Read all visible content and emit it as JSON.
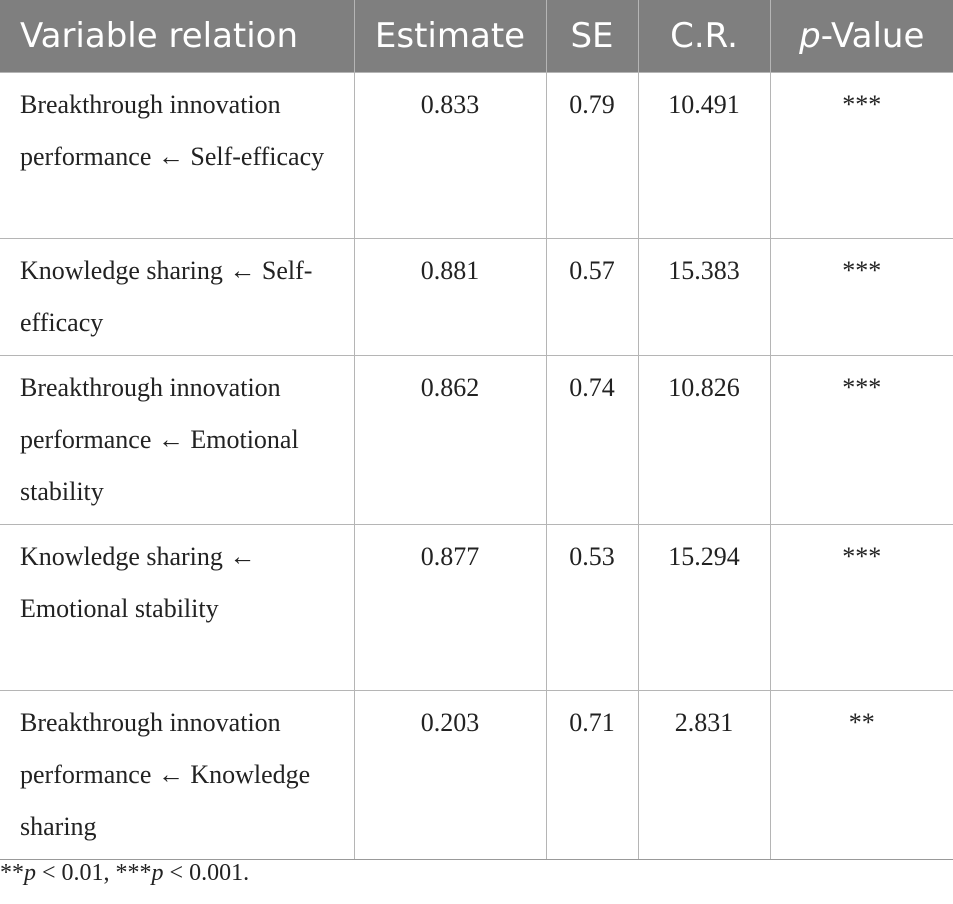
{
  "headers": {
    "variable_relation": "Variable relation",
    "estimate": "Estimate",
    "se": "SE",
    "cr": "C.R.",
    "p_italic": "p",
    "p_rest": "-Value"
  },
  "rows": [
    {
      "relation": "Breakthrough innovation performance ← Self-efficacy",
      "estimate": "0.833",
      "se": "0.79",
      "cr": "10.491",
      "p": "***"
    },
    {
      "relation": "Knowledge sharing ← Self-efficacy",
      "estimate": "0.881",
      "se": "0.57",
      "cr": "15.383",
      "p": "***"
    },
    {
      "relation": "Breakthrough innovation performance ← Emotional stability",
      "estimate": "0.862",
      "se": "0.74",
      "cr": "10.826",
      "p": "***"
    },
    {
      "relation": "Knowledge sharing ← Emotional stability",
      "estimate": "0.877",
      "se": "0.53",
      "cr": "15.294",
      "p": "***"
    },
    {
      "relation": "Breakthrough innovation performance ← Knowledge sharing",
      "estimate": "0.203",
      "se": "0.71",
      "cr": "2.831",
      "p": "**"
    }
  ],
  "footnote": {
    "part1_stars": "**",
    "part1_p": "p",
    "part1_rest": " < 0.01, ***",
    "part2_p": "p",
    "part2_rest": " < 0.001."
  }
}
